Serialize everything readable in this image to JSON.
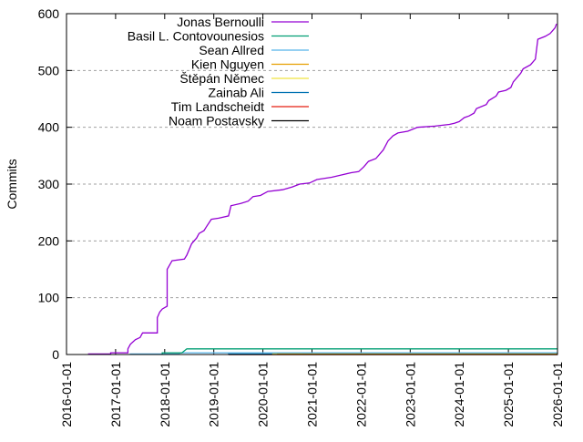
{
  "chart_data": {
    "type": "line",
    "title": "",
    "xlabel": "",
    "ylabel": "Commits",
    "ylim": [
      0,
      600
    ],
    "xlim": [
      "2016-01-01",
      "2026-01-01"
    ],
    "grid": {
      "y": true,
      "x": false,
      "style": "dashed"
    },
    "legend_position": "top-left inside",
    "yticks": [
      0,
      100,
      200,
      300,
      400,
      500,
      600
    ],
    "xticks": [
      "2016-01-01",
      "2017-01-01",
      "2018-01-01",
      "2019-01-01",
      "2020-01-01",
      "2021-01-01",
      "2022-01-01",
      "2023-01-01",
      "2024-01-01",
      "2025-01-01",
      "2026-01-01"
    ],
    "series": [
      {
        "name": "Jonas Bernoulli",
        "color": "#9400d3",
        "points": [
          [
            2016.45,
            0
          ],
          [
            2016.45,
            1
          ],
          [
            2016.9,
            1
          ],
          [
            2016.9,
            3
          ],
          [
            2017.25,
            3
          ],
          [
            2017.25,
            10
          ],
          [
            2017.3,
            18
          ],
          [
            2017.4,
            26
          ],
          [
            2017.5,
            30
          ],
          [
            2017.55,
            38
          ],
          [
            2017.85,
            38
          ],
          [
            2017.85,
            65
          ],
          [
            2017.9,
            75
          ],
          [
            2017.95,
            80
          ],
          [
            2018.05,
            85
          ],
          [
            2018.05,
            150
          ],
          [
            2018.15,
            165
          ],
          [
            2018.4,
            168
          ],
          [
            2018.45,
            175
          ],
          [
            2018.55,
            195
          ],
          [
            2018.65,
            205
          ],
          [
            2018.7,
            213
          ],
          [
            2018.8,
            218
          ],
          [
            2018.85,
            225
          ],
          [
            2018.95,
            238
          ],
          [
            2019.1,
            240
          ],
          [
            2019.3,
            244
          ],
          [
            2019.35,
            262
          ],
          [
            2019.55,
            266
          ],
          [
            2019.7,
            270
          ],
          [
            2019.8,
            278
          ],
          [
            2019.95,
            280
          ],
          [
            2020.1,
            287
          ],
          [
            2020.4,
            290
          ],
          [
            2020.6,
            295
          ],
          [
            2020.75,
            300
          ],
          [
            2020.95,
            302
          ],
          [
            2021.1,
            308
          ],
          [
            2021.4,
            312
          ],
          [
            2021.6,
            316
          ],
          [
            2021.8,
            320
          ],
          [
            2021.95,
            322
          ],
          [
            2022.05,
            330
          ],
          [
            2022.15,
            340
          ],
          [
            2022.3,
            345
          ],
          [
            2022.45,
            360
          ],
          [
            2022.55,
            376
          ],
          [
            2022.65,
            385
          ],
          [
            2022.75,
            390
          ],
          [
            2022.95,
            393
          ],
          [
            2023.15,
            400
          ],
          [
            2023.5,
            402
          ],
          [
            2023.8,
            405
          ],
          [
            2023.9,
            407
          ],
          [
            2024.0,
            410
          ],
          [
            2024.1,
            417
          ],
          [
            2024.2,
            420
          ],
          [
            2024.3,
            425
          ],
          [
            2024.35,
            433
          ],
          [
            2024.55,
            440
          ],
          [
            2024.6,
            447
          ],
          [
            2024.75,
            455
          ],
          [
            2024.8,
            462
          ],
          [
            2024.95,
            465
          ],
          [
            2025.05,
            470
          ],
          [
            2025.1,
            480
          ],
          [
            2025.2,
            490
          ],
          [
            2025.25,
            495
          ],
          [
            2025.3,
            503
          ],
          [
            2025.45,
            510
          ],
          [
            2025.55,
            520
          ],
          [
            2025.6,
            555
          ],
          [
            2025.75,
            560
          ],
          [
            2025.85,
            565
          ],
          [
            2025.9,
            570
          ],
          [
            2025.95,
            575
          ],
          [
            2025.98,
            582
          ]
        ]
      },
      {
        "name": "Basil L. Contovounesios",
        "color": "#009e73",
        "points": [
          [
            2017.95,
            0
          ],
          [
            2017.95,
            3
          ],
          [
            2018.35,
            3
          ],
          [
            2018.45,
            10
          ],
          [
            2026.0,
            10
          ]
        ]
      },
      {
        "name": "Sean Allred",
        "color": "#56b4e9",
        "points": [
          [
            2017.3,
            0
          ],
          [
            2017.3,
            1
          ],
          [
            2018.3,
            1
          ],
          [
            2018.3,
            3
          ],
          [
            2026.0,
            3
          ]
        ]
      },
      {
        "name": "Kien Nguyen",
        "color": "#e69f00",
        "points": [
          [
            2020.3,
            0
          ],
          [
            2020.3,
            1
          ],
          [
            2026.0,
            1
          ]
        ]
      },
      {
        "name": "Štěpán Němec",
        "color": "#f0e442",
        "points": [
          [
            2020.2,
            0
          ],
          [
            2020.2,
            2
          ],
          [
            2020.8,
            2
          ],
          [
            2020.8,
            1
          ],
          [
            2026.0,
            1
          ]
        ]
      },
      {
        "name": "Zainab Ali",
        "color": "#0072b2",
        "points": [
          [
            2019.3,
            0
          ],
          [
            2019.3,
            1
          ],
          [
            2026.0,
            1
          ]
        ]
      },
      {
        "name": "Tim Landscheidt",
        "color": "#e51e10",
        "points": [
          [
            2019.3,
            0
          ],
          [
            2026.0,
            0
          ]
        ]
      },
      {
        "name": "Noam Postavsky",
        "color": "#000000",
        "points": [
          [
            2019.3,
            0
          ],
          [
            2026.0,
            0
          ]
        ]
      }
    ]
  }
}
